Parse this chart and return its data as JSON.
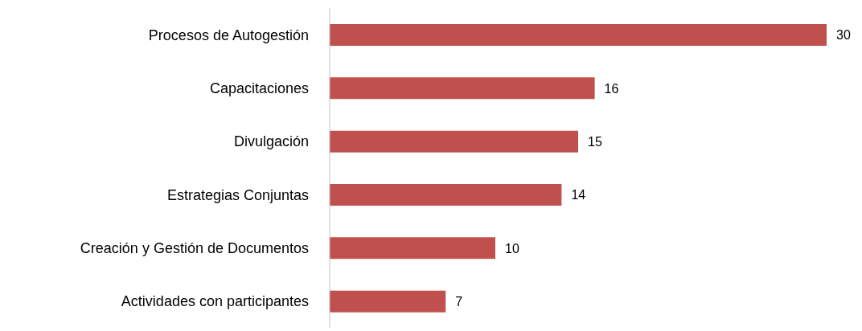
{
  "chart_data": {
    "type": "bar",
    "orientation": "horizontal",
    "categories": [
      "Procesos de Autogestión",
      "Capacitaciones",
      "Divulgación",
      "Estrategias Conjuntas",
      "Creación y Gestión de Documentos",
      "Actividades con participantes"
    ],
    "values": [
      30,
      16,
      15,
      14,
      10,
      7
    ],
    "color": "#c0504d",
    "data_labels": true,
    "grid": false,
    "legend": false
  }
}
